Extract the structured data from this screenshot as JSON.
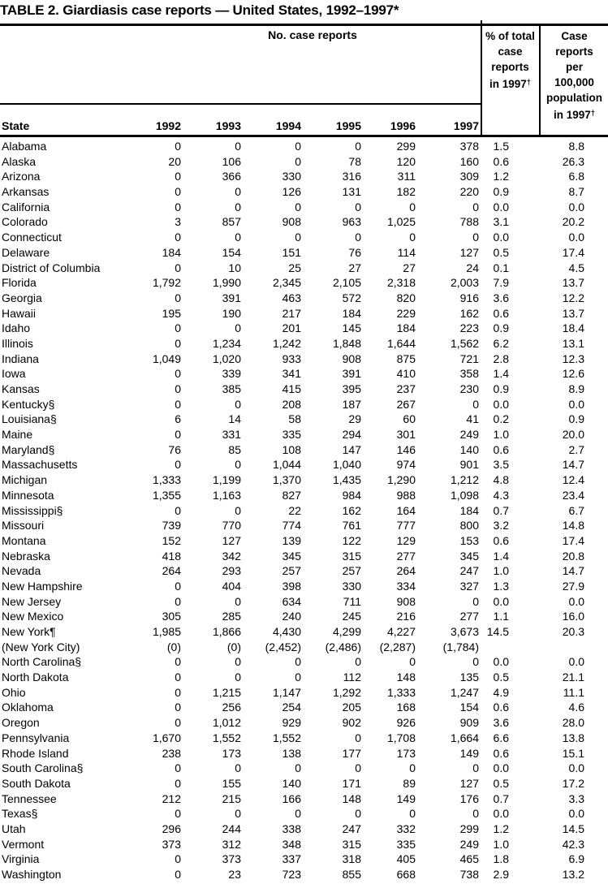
{
  "title": "TABLE 2. Giardiasis case reports — United States, 1992–1997*",
  "colors": {
    "background": "#ffffff",
    "text": "#000000",
    "rules": "#000000"
  },
  "table": {
    "group_header": "No. case reports",
    "state_header": "State",
    "years": [
      "1992",
      "1993",
      "1994",
      "1995",
      "1996",
      "1997"
    ],
    "pct_header_lines": [
      "% of total",
      "case",
      "reports"
    ],
    "rate_header_lines": [
      "Case",
      "reports",
      "per",
      "100,000",
      "population"
    ],
    "in_year_label": "in 1997",
    "dagger": "†",
    "rows": [
      [
        "Alabama",
        "0",
        "0",
        "0",
        "0",
        "299",
        "378",
        "1.5",
        "8.8"
      ],
      [
        "Alaska",
        "20",
        "106",
        "0",
        "78",
        "120",
        "160",
        "0.6",
        "26.3"
      ],
      [
        "Arizona",
        "0",
        "366",
        "330",
        "316",
        "311",
        "309",
        "1.2",
        "6.8"
      ],
      [
        "Arkansas",
        "0",
        "0",
        "126",
        "131",
        "182",
        "220",
        "0.9",
        "8.7"
      ],
      [
        "California",
        "0",
        "0",
        "0",
        "0",
        "0",
        "0",
        "0.0",
        "0.0"
      ],
      [
        "Colorado",
        "3",
        "857",
        "908",
        "963",
        "1,025",
        "788",
        "3.1",
        "20.2"
      ],
      [
        "Connecticut",
        "0",
        "0",
        "0",
        "0",
        "0",
        "0",
        "0.0",
        "0.0"
      ],
      [
        "Delaware",
        "184",
        "154",
        "151",
        "76",
        "114",
        "127",
        "0.5",
        "17.4"
      ],
      [
        "District of Columbia",
        "0",
        "10",
        "25",
        "27",
        "27",
        "24",
        "0.1",
        "4.5"
      ],
      [
        "Florida",
        "1,792",
        "1,990",
        "2,345",
        "2,105",
        "2,318",
        "2,003",
        "7.9",
        "13.7"
      ],
      [
        "Georgia",
        "0",
        "391",
        "463",
        "572",
        "820",
        "916",
        "3.6",
        "12.2"
      ],
      [
        "Hawaii",
        "195",
        "190",
        "217",
        "184",
        "229",
        "162",
        "0.6",
        "13.7"
      ],
      [
        "Idaho",
        "0",
        "0",
        "201",
        "145",
        "184",
        "223",
        "0.9",
        "18.4"
      ],
      [
        "Illinois",
        "0",
        "1,234",
        "1,242",
        "1,848",
        "1,644",
        "1,562",
        "6.2",
        "13.1"
      ],
      [
        "Indiana",
        "1,049",
        "1,020",
        "933",
        "908",
        "875",
        "721",
        "2.8",
        "12.3"
      ],
      [
        "Iowa",
        "0",
        "339",
        "341",
        "391",
        "410",
        "358",
        "1.4",
        "12.6"
      ],
      [
        "Kansas",
        "0",
        "385",
        "415",
        "395",
        "237",
        "230",
        "0.9",
        "8.9"
      ],
      [
        "Kentucky§",
        "0",
        "0",
        "208",
        "187",
        "267",
        "0",
        "0.0",
        "0.0"
      ],
      [
        "Louisiana§",
        "6",
        "14",
        "58",
        "29",
        "60",
        "41",
        "0.2",
        "0.9"
      ],
      [
        "Maine",
        "0",
        "331",
        "335",
        "294",
        "301",
        "249",
        "1.0",
        "20.0"
      ],
      [
        "Maryland§",
        "76",
        "85",
        "108",
        "147",
        "146",
        "140",
        "0.6",
        "2.7"
      ],
      [
        "Massachusetts",
        "0",
        "0",
        "1,044",
        "1,040",
        "974",
        "901",
        "3.5",
        "14.7"
      ],
      [
        "Michigan",
        "1,333",
        "1,199",
        "1,370",
        "1,435",
        "1,290",
        "1,212",
        "4.8",
        "12.4"
      ],
      [
        "Minnesota",
        "1,355",
        "1,163",
        "827",
        "984",
        "988",
        "1,098",
        "4.3",
        "23.4"
      ],
      [
        "Mississippi§",
        "0",
        "0",
        "22",
        "162",
        "164",
        "184",
        "0.7",
        "6.7"
      ],
      [
        "Missouri",
        "739",
        "770",
        "774",
        "761",
        "777",
        "800",
        "3.2",
        "14.8"
      ],
      [
        "Montana",
        "152",
        "127",
        "139",
        "122",
        "129",
        "153",
        "0.6",
        "17.4"
      ],
      [
        "Nebraska",
        "418",
        "342",
        "345",
        "315",
        "277",
        "345",
        "1.4",
        "20.8"
      ],
      [
        "Nevada",
        "264",
        "293",
        "257",
        "257",
        "264",
        "247",
        "1.0",
        "14.7"
      ],
      [
        "New Hampshire",
        "0",
        "404",
        "398",
        "330",
        "334",
        "327",
        "1.3",
        "27.9"
      ],
      [
        "New Jersey",
        "0",
        "0",
        "634",
        "711",
        "908",
        "0",
        "0.0",
        "0.0"
      ],
      [
        "New Mexico",
        "305",
        "285",
        "240",
        "245",
        "216",
        "277",
        "1.1",
        "16.0"
      ],
      [
        "New York¶",
        "1,985",
        "1,866",
        "4,430",
        "4,299",
        "4,227",
        "3,673",
        "14.5",
        "20.3"
      ],
      [
        "(New York City)",
        "(0)",
        "(0)",
        "(2,452)",
        "(2,486)",
        "(2,287)",
        "(1,784)",
        "",
        ""
      ],
      [
        "North Carolina§",
        "0",
        "0",
        "0",
        "0",
        "0",
        "0",
        "0.0",
        "0.0"
      ],
      [
        "North Dakota",
        "0",
        "0",
        "0",
        "112",
        "148",
        "135",
        "0.5",
        "21.1"
      ],
      [
        "Ohio",
        "0",
        "1,215",
        "1,147",
        "1,292",
        "1,333",
        "1,247",
        "4.9",
        "11.1"
      ],
      [
        "Oklahoma",
        "0",
        "256",
        "254",
        "205",
        "168",
        "154",
        "0.6",
        "4.6"
      ],
      [
        "Oregon",
        "0",
        "1,012",
        "929",
        "902",
        "926",
        "909",
        "3.6",
        "28.0"
      ],
      [
        "Pennsylvania",
        "1,670",
        "1,552",
        "1,552",
        "0",
        "1,708",
        "1,664",
        "6.6",
        "13.8"
      ],
      [
        "Rhode Island",
        "238",
        "173",
        "138",
        "177",
        "173",
        "149",
        "0.6",
        "15.1"
      ],
      [
        "South Carolina§",
        "0",
        "0",
        "0",
        "0",
        "0",
        "0",
        "0.0",
        "0.0"
      ],
      [
        "South Dakota",
        "0",
        "155",
        "140",
        "171",
        "89",
        "127",
        "0.5",
        "17.2"
      ],
      [
        "Tennessee",
        "212",
        "215",
        "166",
        "148",
        "149",
        "176",
        "0.7",
        "3.3"
      ],
      [
        "Texas§",
        "0",
        "0",
        "0",
        "0",
        "0",
        "0",
        "0.0",
        "0.0"
      ],
      [
        "Utah",
        "296",
        "244",
        "338",
        "247",
        "332",
        "299",
        "1.2",
        "14.5"
      ],
      [
        "Vermont",
        "373",
        "312",
        "348",
        "315",
        "335",
        "249",
        "1.0",
        "42.3"
      ],
      [
        "Virginia",
        "0",
        "373",
        "337",
        "318",
        "405",
        "465",
        "1.8",
        "6.9"
      ],
      [
        "Washington",
        "0",
        "23",
        "723",
        "855",
        "668",
        "738",
        "2.9",
        "13.2"
      ]
    ]
  }
}
